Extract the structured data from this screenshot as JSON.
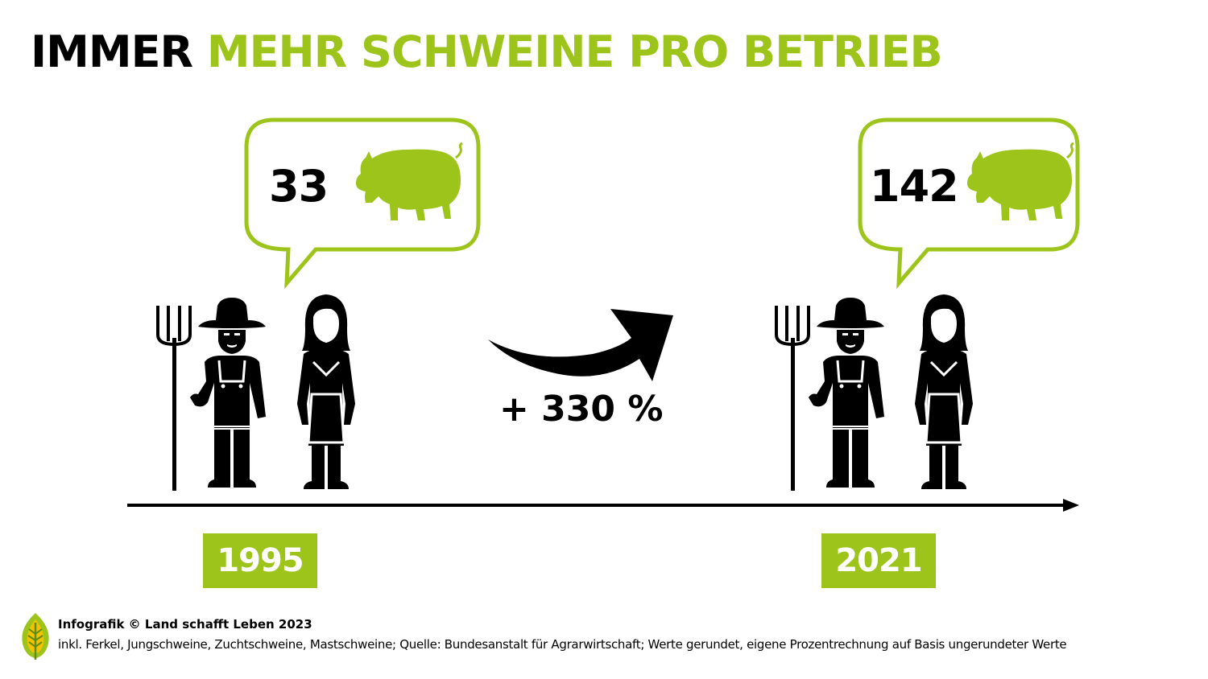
{
  "title": {
    "part1": "IMMER",
    "part2": "MEHR SCHWEINE PRO BETRIEB"
  },
  "periods": [
    {
      "year": "1995",
      "pigs_per_farm": "33"
    },
    {
      "year": "2021",
      "pigs_per_farm": "142"
    }
  ],
  "change": "+ 330 %",
  "footer": {
    "credit": "Infografik © Land schafft Leben 2023",
    "source": "inkl. Ferkel, Jungschweine, Zuchtschweine, Mastschweine; Quelle: Bundesanstalt für Agrarwirtschaft; Werte gerundet, eigene Prozentrechnung auf Basis ungerundeter Werte"
  },
  "colors": {
    "accent": "#9dc41a",
    "text": "#000000",
    "badge_text": "#ffffff"
  },
  "icons": [
    "speech-bubble-icon",
    "pig-icon",
    "farmer-man-icon",
    "farmer-woman-icon",
    "pitchfork-icon",
    "trend-arrow-icon",
    "timeline-arrow-icon",
    "leaf-logo-icon"
  ]
}
